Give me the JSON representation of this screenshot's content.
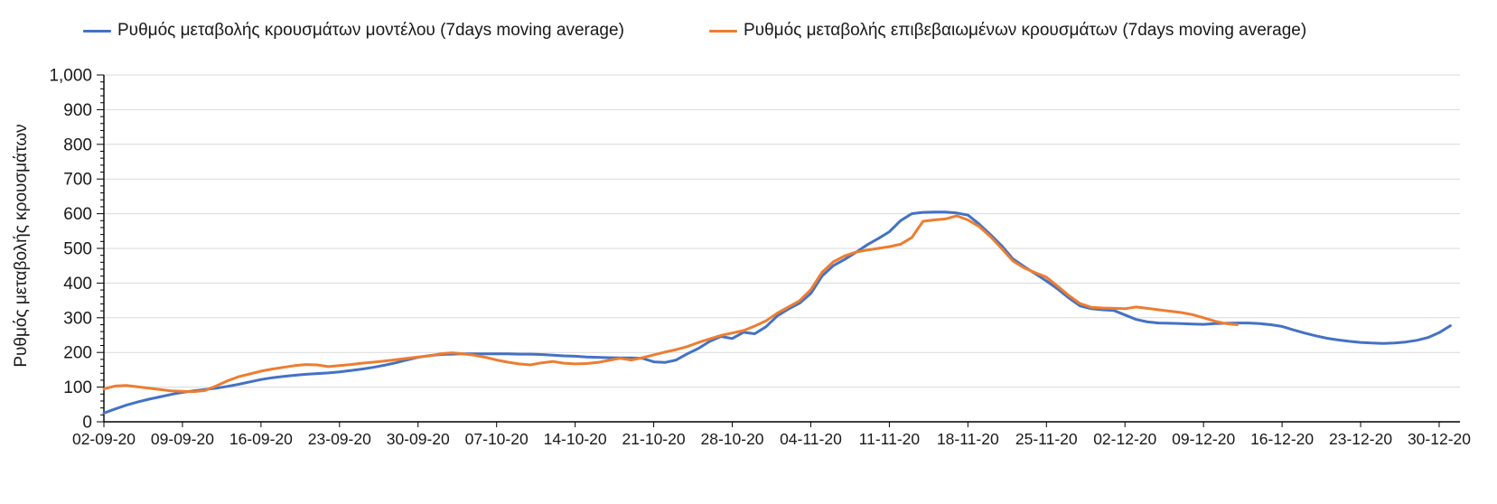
{
  "colors": {
    "series_model_blue": "#4472C4",
    "series_confirmed_orange": "#ED7D31",
    "grid": "#D9D9D9",
    "axis": "#000000",
    "text": "#1a1a1a"
  },
  "chart_data": {
    "type": "line",
    "title": "",
    "xlabel": "",
    "ylabel": "Ρυθμός μεταβολής κρουσμάτων",
    "ylim": [
      0,
      1000
    ],
    "y_tick_interval": 100,
    "y_minor_tick_interval": 20,
    "grid": "horizontal-major-only",
    "legend_position": "top",
    "y_tick_labels": [
      "0",
      "100",
      "200",
      "300",
      "400",
      "500",
      "600",
      "700",
      "800",
      "900",
      "1,000"
    ],
    "x_tick_labels": [
      "02-09-20",
      "09-09-20",
      "16-09-20",
      "23-09-20",
      "30-09-20",
      "07-10-20",
      "14-10-20",
      "21-10-20",
      "28-10-20",
      "04-11-20",
      "11-11-20",
      "18-11-20",
      "25-11-20",
      "02-12-20",
      "09-12-20",
      "16-12-20",
      "23-12-20",
      "30-12-20"
    ],
    "x_days_per_tick": 7,
    "x_start_date": "02-09-20",
    "x_step": "daily",
    "series": [
      {
        "name": "Ρυθμός μεταβολής κρουσμάτων μοντέλου (7days moving average)",
        "color": "#4472C4",
        "values": [
          25,
          37,
          48,
          57,
          65,
          72,
          79,
          85,
          89,
          93,
          97,
          102,
          108,
          115,
          122,
          127,
          131,
          134,
          137,
          139,
          141,
          144,
          148,
          152,
          157,
          163,
          170,
          178,
          186,
          191,
          194,
          195,
          196,
          196,
          196,
          196,
          196,
          195,
          195,
          194,
          192,
          190,
          189,
          187,
          186,
          185,
          184,
          184,
          183,
          173,
          171,
          178,
          196,
          212,
          232,
          246,
          240,
          258,
          254,
          274,
          305,
          325,
          342,
          370,
          420,
          450,
          468,
          488,
          510,
          528,
          548,
          580,
          600,
          604,
          605,
          605,
          602,
          596,
          570,
          540,
          508,
          470,
          448,
          427,
          406,
          383,
          357,
          334,
          326,
          323,
          321,
          308,
          295,
          288,
          285,
          284,
          283,
          282,
          281,
          283,
          284,
          285,
          285,
          283,
          280,
          275,
          265,
          256,
          248,
          241,
          236,
          232,
          229,
          227,
          226,
          227,
          230,
          235,
          243,
          257,
          277
        ]
      },
      {
        "name": "Ρυθμός μεταβολής επιβεβαιωμένων κρουσμάτων (7days moving average)",
        "color": "#ED7D31",
        "values": [
          95,
          103,
          105,
          101,
          97,
          93,
          89,
          88,
          87,
          90,
          103,
          118,
          130,
          138,
          146,
          152,
          157,
          162,
          165,
          164,
          159,
          162,
          165,
          169,
          172,
          175,
          179,
          183,
          187,
          190,
          196,
          199,
          196,
          192,
          186,
          178,
          172,
          167,
          164,
          170,
          174,
          169,
          167,
          168,
          171,
          177,
          183,
          178,
          185,
          193,
          201,
          208,
          217,
          229,
          239,
          249,
          256,
          263,
          276,
          291,
          313,
          331,
          349,
          381,
          431,
          461,
          478,
          489,
          495,
          500,
          505,
          512,
          531,
          578,
          582,
          585,
          594,
          582,
          563,
          534,
          500,
          464,
          444,
          430,
          417,
          391,
          364,
          341,
          330,
          328,
          327,
          326,
          331,
          327,
          323,
          319,
          315,
          309,
          300,
          290,
          283,
          280
        ]
      }
    ]
  }
}
